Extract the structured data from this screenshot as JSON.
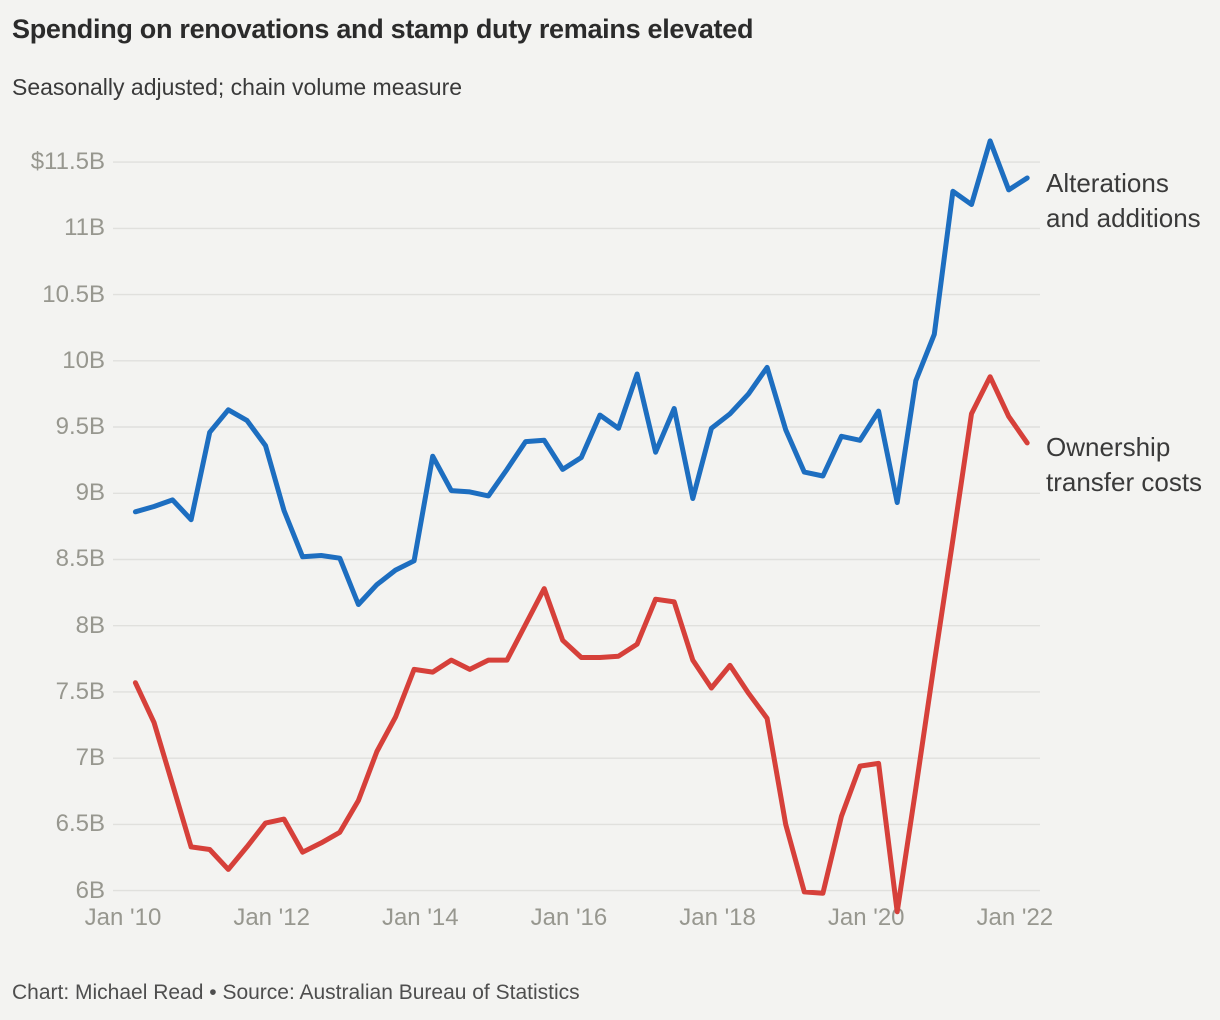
{
  "page": {
    "title": "Spending on renovations and stamp duty remains elevated",
    "subtitle": "Seasonally adjusted; chain volume measure",
    "footer": "Chart: Michael Read • Source: Australian Bureau of Statistics"
  },
  "chart_data": {
    "type": "line",
    "title": "Spending on renovations and stamp duty remains elevated",
    "subtitle": "Seasonally adjusted; chain volume measure",
    "source": "Australian Bureau of Statistics",
    "unit": "billions of dollars, chain volume, seasonally adjusted",
    "grid": "horizontal",
    "legend_position": "right-inline",
    "ylim": [
      5.8,
      11.75
    ],
    "x": [
      "Mar '10",
      "Jun '10",
      "Sep '10",
      "Dec '10",
      "Mar '11",
      "Jun '11",
      "Sep '11",
      "Dec '11",
      "Mar '12",
      "Jun '12",
      "Sep '12",
      "Dec '12",
      "Mar '13",
      "Jun '13",
      "Sep '13",
      "Dec '13",
      "Mar '14",
      "Jun '14",
      "Sep '14",
      "Dec '14",
      "Mar '15",
      "Jun '15",
      "Sep '15",
      "Dec '15",
      "Mar '16",
      "Jun '16",
      "Sep '16",
      "Dec '16",
      "Mar '17",
      "Jun '17",
      "Sep '17",
      "Dec '17",
      "Mar '18",
      "Jun '18",
      "Sep '18",
      "Dec '18",
      "Mar '19",
      "Jun '19",
      "Sep '19",
      "Dec '19",
      "Mar '20",
      "Jun '20",
      "Sep '20",
      "Dec '20",
      "Mar '21",
      "Jun '21",
      "Sep '21",
      "Dec '21",
      "Mar '22"
    ],
    "series": [
      {
        "name": "Alterations and additions",
        "color": "#1d6ec0",
        "values": [
          8.86,
          8.9,
          8.95,
          8.8,
          9.46,
          9.63,
          9.55,
          9.36,
          8.87,
          8.52,
          8.53,
          8.51,
          8.16,
          8.31,
          8.42,
          8.49,
          9.28,
          9.02,
          9.01,
          8.98,
          9.18,
          9.39,
          9.4,
          9.18,
          9.27,
          9.59,
          9.49,
          9.9,
          9.31,
          9.64,
          8.96,
          9.49,
          9.6,
          9.75,
          9.95,
          9.48,
          9.16,
          9.13,
          9.43,
          9.4,
          9.62,
          8.93,
          9.85,
          10.2,
          11.28,
          11.18,
          11.66,
          11.29,
          11.38
        ]
      },
      {
        "name": "Ownership transfer costs",
        "color": "#d6403a",
        "values": [
          7.57,
          7.27,
          6.8,
          6.33,
          6.31,
          6.16,
          6.33,
          6.51,
          6.54,
          6.29,
          6.36,
          6.44,
          6.68,
          7.05,
          7.31,
          7.67,
          7.65,
          7.74,
          7.67,
          7.74,
          7.74,
          8.01,
          8.28,
          7.89,
          7.76,
          7.76,
          7.77,
          7.86,
          8.2,
          8.18,
          7.74,
          7.53,
          7.7,
          7.49,
          7.3,
          6.5,
          5.99,
          5.98,
          6.56,
          6.94,
          6.96,
          5.84,
          6.77,
          7.72,
          8.65,
          9.6,
          9.88,
          9.58,
          9.38
        ]
      }
    ],
    "y_ticks": [
      {
        "value": 11.5,
        "label": "$11.5B"
      },
      {
        "value": 11.0,
        "label": "11B"
      },
      {
        "value": 10.5,
        "label": "10.5B"
      },
      {
        "value": 10.0,
        "label": "10B"
      },
      {
        "value": 9.5,
        "label": "9.5B"
      },
      {
        "value": 9.0,
        "label": "9B"
      },
      {
        "value": 8.5,
        "label": "8.5B"
      },
      {
        "value": 8.0,
        "label": "8B"
      },
      {
        "value": 7.5,
        "label": "7.5B"
      },
      {
        "value": 7.0,
        "label": "7B"
      },
      {
        "value": 6.5,
        "label": "6.5B"
      },
      {
        "value": 6.0,
        "label": "6B"
      }
    ],
    "x_ticks": [
      {
        "year": 2010,
        "label": "Jan '10"
      },
      {
        "year": 2012,
        "label": "Jan '12"
      },
      {
        "year": 2014,
        "label": "Jan '14"
      },
      {
        "year": 2016,
        "label": "Jan '16"
      },
      {
        "year": 2018,
        "label": "Jan '18"
      },
      {
        "year": 2020,
        "label": "Jan '20"
      },
      {
        "year": 2022,
        "label": "Jan '22"
      }
    ]
  }
}
